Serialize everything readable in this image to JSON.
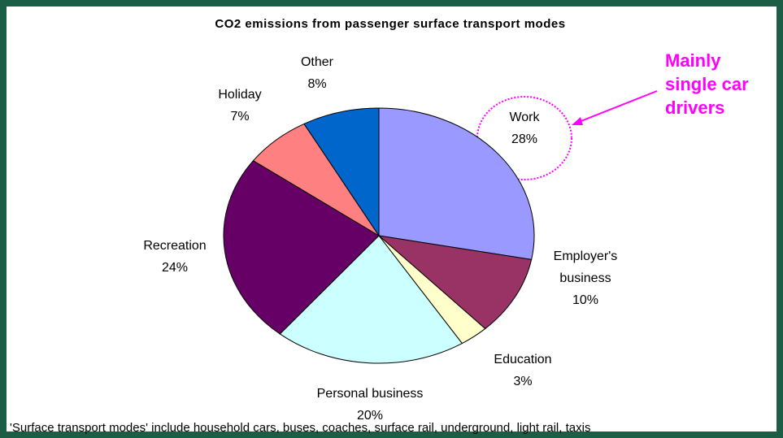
{
  "chart_data": {
    "type": "pie",
    "title": "CO2 emissions from passenger surface transport modes",
    "categories": [
      "Work",
      "Employer's business",
      "Education",
      "Personal business",
      "Recreation",
      "Holiday",
      "Other"
    ],
    "values": [
      28,
      10,
      3,
      20,
      24,
      7,
      8
    ],
    "value_labels": [
      "28%",
      "10%",
      "3%",
      "20%",
      "24%",
      "7%",
      "8%"
    ],
    "colors": [
      "#9999ff",
      "#993366",
      "#ffffcc",
      "#ccffff",
      "#660066",
      "#ff8080",
      "#0066cc"
    ],
    "annotation": [
      "Mainly",
      "single car",
      "drivers"
    ],
    "footnote": "'Surface transport modes' include household cars, buses, coaches, surface rail, underground, light rail, taxis"
  }
}
